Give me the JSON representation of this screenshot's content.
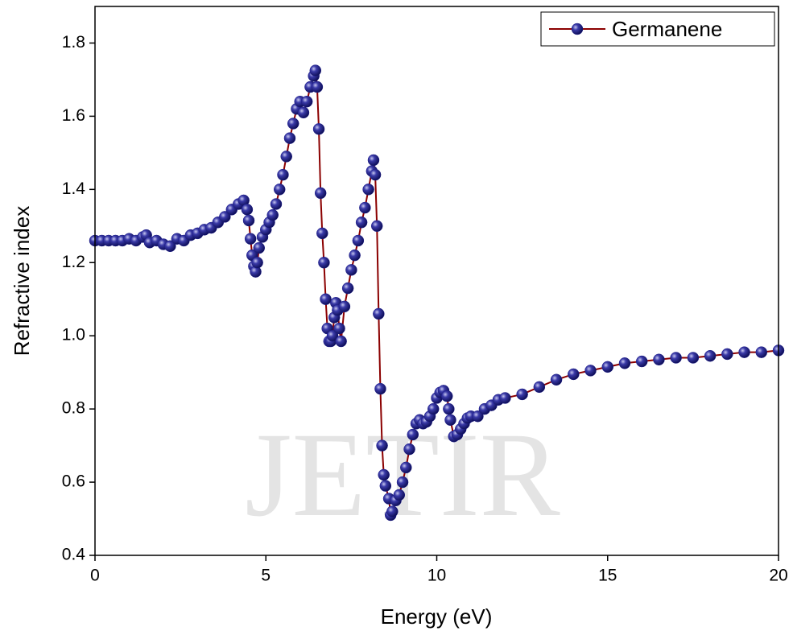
{
  "chart_data": {
    "type": "line",
    "watermark": "JETIR",
    "x_label": "Energy (eV)",
    "y_label": "Refractive index",
    "xlim": [
      0,
      20
    ],
    "xticks": [
      0,
      5,
      10,
      15,
      20
    ],
    "ylim": [
      0.4,
      1.9
    ],
    "yticks": [
      0.4,
      0.6,
      0.8,
      {
        "value": 1,
        "label": "1.0"
      },
      1.2,
      1.4,
      1.6,
      1.8
    ],
    "legend": "upper right",
    "series": [
      {
        "name": "Germanene",
        "color": "#1c1c8a",
        "line_color": "#8b0000",
        "x": [
          0,
          0.2,
          0.4,
          0.6,
          0.8,
          1.0,
          1.2,
          1.4,
          1.5,
          1.6,
          1.8,
          2.0,
          2.2,
          2.4,
          2.6,
          2.8,
          3.0,
          3.2,
          3.4,
          3.6,
          3.8,
          4.0,
          4.2,
          4.35,
          4.45,
          4.5,
          4.55,
          4.6,
          4.65,
          4.7,
          4.75,
          4.8,
          4.9,
          5.0,
          5.1,
          5.2,
          5.3,
          5.4,
          5.5,
          5.6,
          5.7,
          5.8,
          5.9,
          6.0,
          6.1,
          6.2,
          6.3,
          6.4,
          6.45,
          6.5,
          6.55,
          6.6,
          6.65,
          6.7,
          6.75,
          6.8,
          6.85,
          6.9,
          6.95,
          7.0,
          7.05,
          7.1,
          7.15,
          7.2,
          7.3,
          7.4,
          7.5,
          7.6,
          7.7,
          7.8,
          7.9,
          8.0,
          8.1,
          8.15,
          8.2,
          8.25,
          8.3,
          8.35,
          8.4,
          8.45,
          8.5,
          8.6,
          8.65,
          8.7,
          8.8,
          8.9,
          9.0,
          9.1,
          9.2,
          9.3,
          9.4,
          9.5,
          9.6,
          9.7,
          9.8,
          9.9,
          10.0,
          10.1,
          10.2,
          10.3,
          10.35,
          10.4,
          10.5,
          10.6,
          10.7,
          10.8,
          10.9,
          11.0,
          11.2,
          11.4,
          11.6,
          11.8,
          12,
          12.5,
          13,
          13.5,
          14,
          14.5,
          15,
          15.5,
          16,
          16.5,
          17,
          17.5,
          18,
          18.5,
          19,
          19.5,
          20
        ],
        "values": [
          1.26,
          1.26,
          1.26,
          1.26,
          1.26,
          1.265,
          1.26,
          1.27,
          1.275,
          1.255,
          1.26,
          1.25,
          1.245,
          1.265,
          1.26,
          1.275,
          1.28,
          1.29,
          1.295,
          1.31,
          1.325,
          1.345,
          1.36,
          1.37,
          1.345,
          1.315,
          1.265,
          1.22,
          1.19,
          1.175,
          1.2,
          1.24,
          1.27,
          1.29,
          1.31,
          1.33,
          1.36,
          1.4,
          1.44,
          1.49,
          1.54,
          1.58,
          1.62,
          1.64,
          1.61,
          1.64,
          1.68,
          1.71,
          1.725,
          1.68,
          1.565,
          1.39,
          1.28,
          1.2,
          1.1,
          1.02,
          0.985,
          0.985,
          1.0,
          1.05,
          1.09,
          1.07,
          1.02,
          0.985,
          1.08,
          1.13,
          1.18,
          1.22,
          1.26,
          1.31,
          1.35,
          1.4,
          1.45,
          1.48,
          1.44,
          1.3,
          1.06,
          0.855,
          0.7,
          0.62,
          0.59,
          0.555,
          0.51,
          0.52,
          0.55,
          0.565,
          0.6,
          0.64,
          0.69,
          0.73,
          0.76,
          0.77,
          0.76,
          0.765,
          0.78,
          0.8,
          0.83,
          0.845,
          0.85,
          0.835,
          0.8,
          0.77,
          0.725,
          0.73,
          0.745,
          0.76,
          0.775,
          0.78,
          0.78,
          0.8,
          0.81,
          0.825,
          0.83,
          0.84,
          0.86,
          0.88,
          0.895,
          0.905,
          0.915,
          0.925,
          0.93,
          0.935,
          0.94,
          0.94,
          0.945,
          0.95,
          0.955,
          0.955,
          0.96
        ]
      }
    ]
  }
}
